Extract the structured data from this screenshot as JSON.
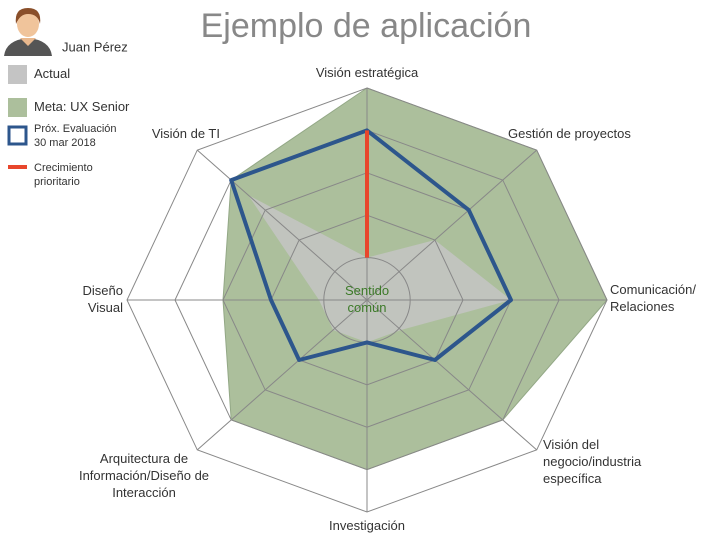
{
  "header": {
    "user": "Juan Pérez"
  },
  "chart_data": {
    "type": "radar",
    "title": "Ejemplo de aplicación",
    "center_label": [
      "Sentido",
      "común"
    ],
    "categories": [
      [
        "Visión estratégica"
      ],
      [
        "Gestión de proyectos"
      ],
      [
        "Comunicación/",
        "Relaciones"
      ],
      [
        "Visión del",
        "negocio/industria",
        "específica"
      ],
      [
        "Investigación"
      ],
      [
        "Arquitectura de",
        "Información/Diseño de",
        "Interacción"
      ],
      [
        "Diseño",
        "Visual"
      ],
      [
        "Visión de TI"
      ]
    ],
    "rlim": [
      0,
      5
    ],
    "rticks": [
      1,
      2,
      3,
      4,
      5
    ],
    "series": [
      {
        "name": "Meta: UX Senior",
        "color": "#acbf9c",
        "style": "area",
        "values": [
          5,
          5,
          5,
          4,
          4,
          4,
          3,
          4
        ]
      },
      {
        "name": "Actual",
        "color": "#c4c4c4",
        "style": "area",
        "values": [
          1,
          2,
          3,
          1,
          1,
          1,
          1,
          3.5
        ]
      },
      {
        "name": [
          "Próx. Evaluación",
          "30 mar 2018"
        ],
        "color": "#2d568c",
        "style": "line",
        "values": [
          4,
          3,
          3,
          2,
          1,
          2,
          2,
          4
        ]
      }
    ],
    "priority": {
      "name": [
        "Crecimiento",
        "prioritario"
      ],
      "color": "#e8462c",
      "axis": 0,
      "from": 1,
      "to": 4
    }
  }
}
